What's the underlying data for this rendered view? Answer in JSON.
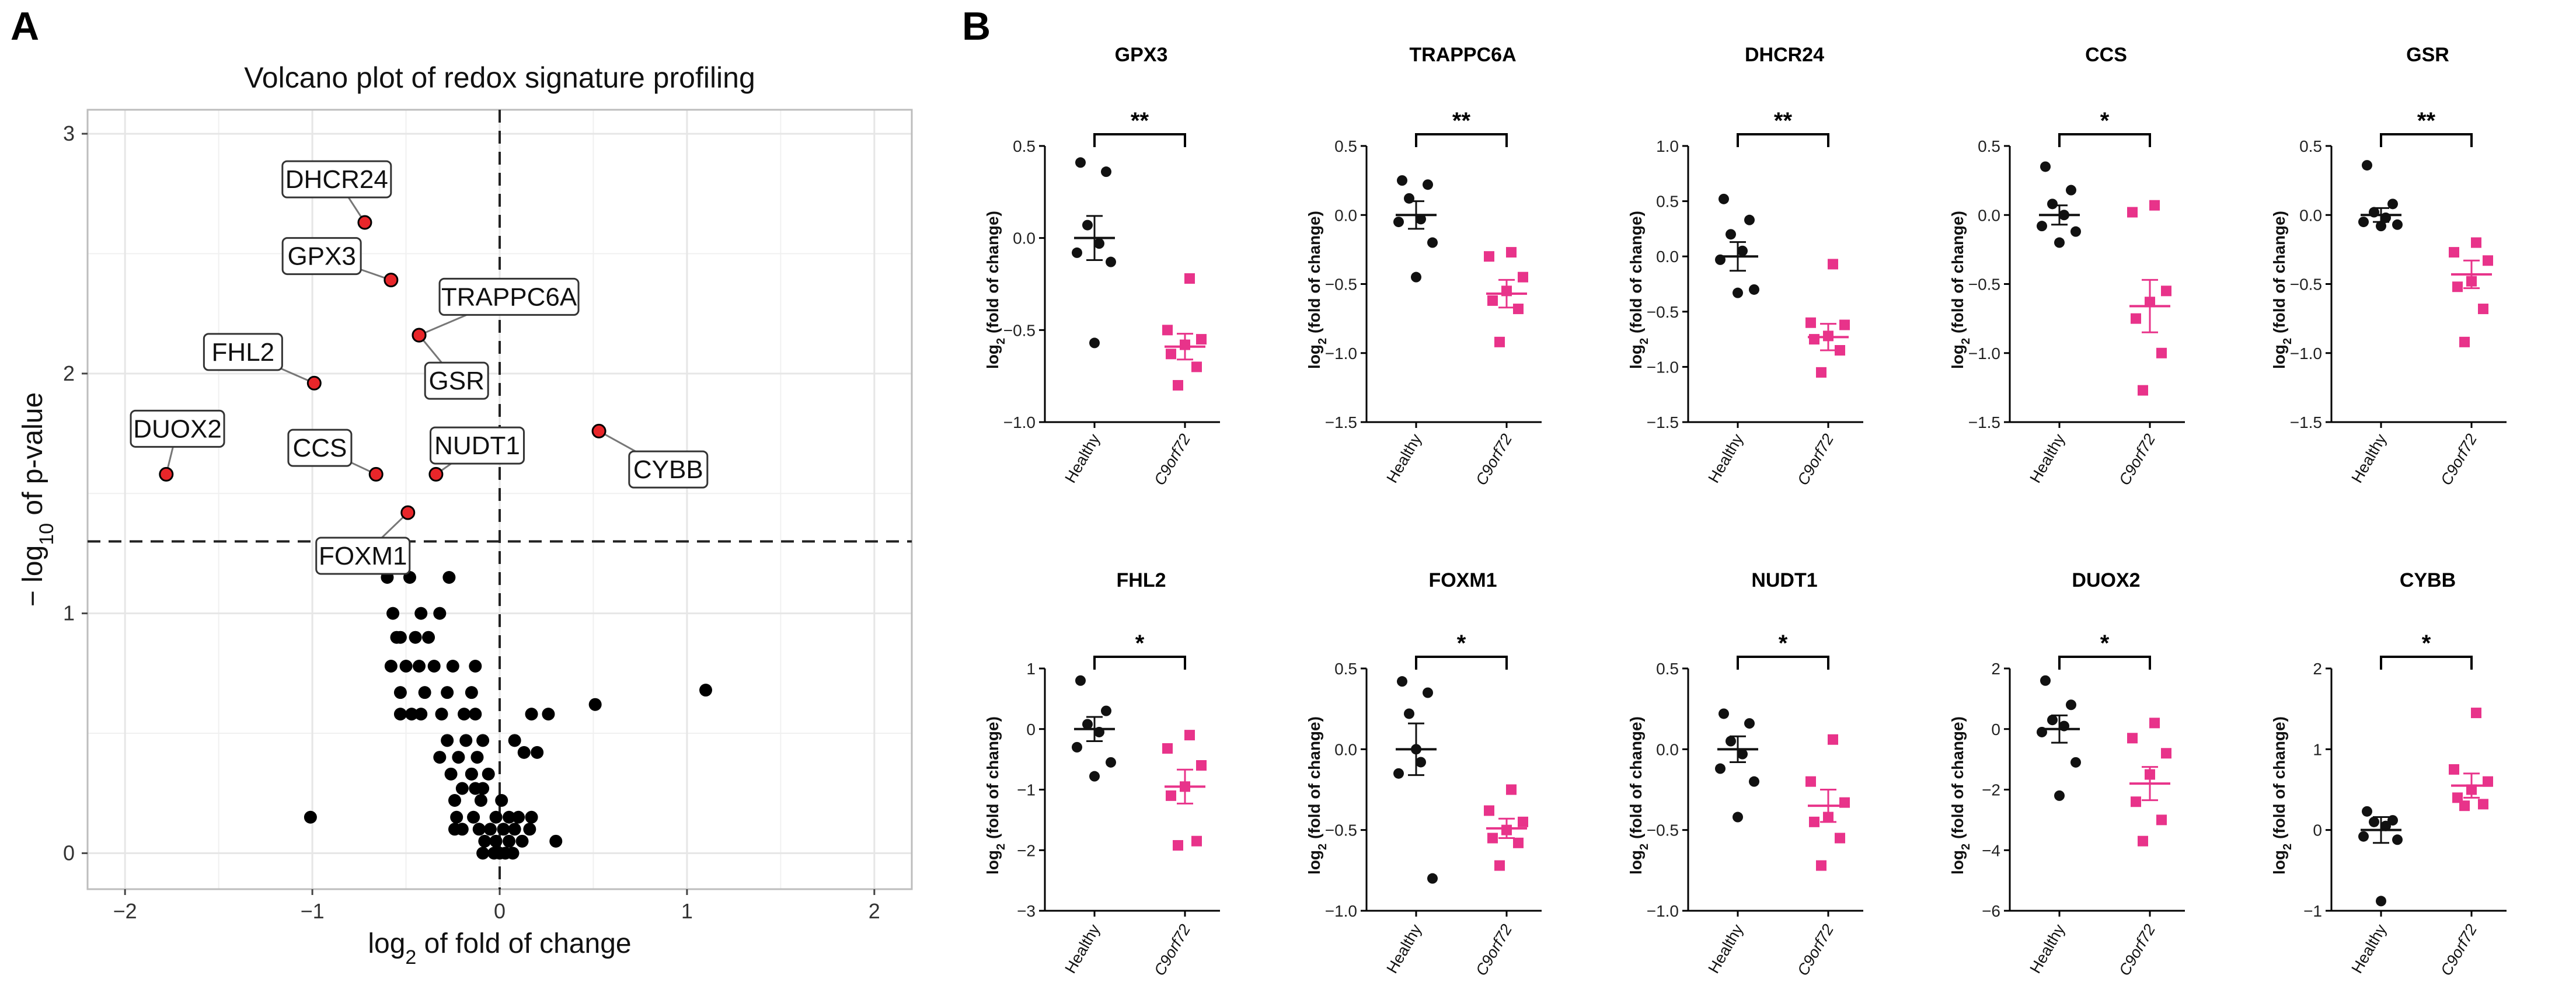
{
  "panels": {
    "a": "A",
    "b": "B"
  },
  "colors": {
    "point": "#000000",
    "highlight": "#e8262a",
    "healthy": "#111111",
    "disease": "#e8338a",
    "grid": "#e6e6e6",
    "frame": "#bdbdbd"
  },
  "chart_data": [
    {
      "type": "scatter",
      "title": "Volcano plot of redox signature profiling",
      "xlabel_base": "log",
      "xlabel_sub": "2",
      "xlabel_rest": " of fold of change",
      "ylabel_pre": "− log",
      "ylabel_sub": "10",
      "ylabel_rest": " of p-value",
      "xlim": [
        -2.2,
        2.2
      ],
      "ylim": [
        -0.15,
        3.1
      ],
      "xticks": [
        -2,
        -1,
        0,
        1,
        2
      ],
      "yticks": [
        0,
        1,
        2,
        3
      ],
      "threshold_y": 1.3,
      "threshold_x": 0,
      "highlighted": [
        {
          "label": "DHCR24",
          "x": -0.72,
          "y": 2.63
        },
        {
          "label": "GPX3",
          "x": -0.58,
          "y": 2.39
        },
        {
          "label": "TRAPPC6A",
          "x": -0.43,
          "y": 2.16
        },
        {
          "label": "GSR",
          "x": -0.43,
          "y": 2.16
        },
        {
          "label": "FHL2",
          "x": -0.99,
          "y": 1.96
        },
        {
          "label": "CYBB",
          "x": 0.53,
          "y": 1.76
        },
        {
          "label": "DUOX2",
          "x": -1.78,
          "y": 1.58
        },
        {
          "label": "CCS",
          "x": -0.66,
          "y": 1.58
        },
        {
          "label": "NUDT1",
          "x": -0.34,
          "y": 1.58
        },
        {
          "label": "FOXM1",
          "x": -0.49,
          "y": 1.42
        }
      ],
      "points": [
        [
          -0.6,
          1.15
        ],
        [
          -0.48,
          1.15
        ],
        [
          -0.27,
          1.15
        ],
        [
          -0.57,
          1.0
        ],
        [
          -0.42,
          1.0
        ],
        [
          -0.32,
          1.0
        ],
        [
          -0.53,
          0.9
        ],
        [
          -0.45,
          0.9
        ],
        [
          -0.38,
          0.9
        ],
        [
          -0.55,
          0.9
        ],
        [
          -0.58,
          0.78
        ],
        [
          -0.5,
          0.78
        ],
        [
          -0.35,
          0.78
        ],
        [
          -0.25,
          0.78
        ],
        [
          -0.13,
          0.78
        ],
        [
          -0.43,
          0.78
        ],
        [
          -0.53,
          0.67
        ],
        [
          -0.4,
          0.67
        ],
        [
          -0.28,
          0.67
        ],
        [
          -0.15,
          0.67
        ],
        [
          -0.53,
          0.58
        ],
        [
          -0.47,
          0.58
        ],
        [
          -0.42,
          0.58
        ],
        [
          -0.31,
          0.58
        ],
        [
          -0.19,
          0.58
        ],
        [
          -0.13,
          0.58
        ],
        [
          0.17,
          0.58
        ],
        [
          0.26,
          0.58
        ],
        [
          0.51,
          0.62
        ],
        [
          1.1,
          0.68
        ],
        [
          -0.28,
          0.47
        ],
        [
          -0.18,
          0.47
        ],
        [
          -0.09,
          0.47
        ],
        [
          0.08,
          0.47
        ],
        [
          -0.32,
          0.4
        ],
        [
          -0.22,
          0.4
        ],
        [
          -0.12,
          0.4
        ],
        [
          0.13,
          0.42
        ],
        [
          0.2,
          0.42
        ],
        [
          -0.26,
          0.33
        ],
        [
          -0.15,
          0.33
        ],
        [
          -0.06,
          0.33
        ],
        [
          -0.15,
          0.33
        ],
        [
          -0.2,
          0.27
        ],
        [
          -0.13,
          0.27
        ],
        [
          -0.09,
          0.27
        ],
        [
          -0.24,
          0.22
        ],
        [
          -0.1,
          0.22
        ],
        [
          0.01,
          0.22
        ],
        [
          -0.23,
          0.15
        ],
        [
          -0.14,
          0.15
        ],
        [
          -0.02,
          0.15
        ],
        [
          0.05,
          0.15
        ],
        [
          0.1,
          0.15
        ],
        [
          0.17,
          0.15
        ],
        [
          -1.01,
          0.15
        ],
        [
          -0.24,
          0.1
        ],
        [
          -0.2,
          0.1
        ],
        [
          -0.11,
          0.1
        ],
        [
          -0.05,
          0.1
        ],
        [
          0.02,
          0.1
        ],
        [
          0.08,
          0.1
        ],
        [
          0.16,
          0.1
        ],
        [
          -0.08,
          0.05
        ],
        [
          -0.02,
          0.05
        ],
        [
          0.05,
          0.05
        ],
        [
          0.12,
          0.05
        ],
        [
          0.3,
          0.05
        ],
        [
          -0.09,
          0.0
        ],
        [
          -0.03,
          0.0
        ],
        [
          0.03,
          0.0
        ],
        [
          0.07,
          0.0
        ],
        [
          0.0,
          0.0
        ]
      ]
    },
    {
      "type": "scatter",
      "subtype": "dot-plot-grid",
      "ylabel_pre": "log",
      "ylabel_sub": "2",
      "ylabel_rest": " (fold of change)",
      "categories": [
        "Healthy",
        "C9orf72"
      ],
      "panels": [
        {
          "title": "GPX3",
          "ylim": [
            -1.0,
            0.5
          ],
          "yticks": [
            -1.0,
            -0.5,
            0.0,
            0.5
          ],
          "tick_fmt": 1,
          "sig": "**",
          "healthy": [
            0.41,
            0.36,
            0.07,
            -0.03,
            -0.08,
            -0.13,
            -0.57
          ],
          "disease": [
            -0.22,
            -0.5,
            -0.55,
            -0.58,
            -0.63,
            -0.7,
            -0.8
          ],
          "healthy_mean": 0.0,
          "healthy_sem": 0.12,
          "disease_mean": -0.59,
          "disease_sem": 0.07
        },
        {
          "title": "TRAPPC6A",
          "ylim": [
            -1.5,
            0.5
          ],
          "yticks": [
            -1.5,
            -1.0,
            -0.5,
            0.0,
            0.5
          ],
          "tick_fmt": 1,
          "sig": "**",
          "healthy": [
            0.25,
            0.22,
            0.12,
            -0.03,
            -0.05,
            -0.2,
            -0.45
          ],
          "disease": [
            -0.27,
            -0.3,
            -0.45,
            -0.55,
            -0.62,
            -0.68,
            -0.92
          ],
          "healthy_mean": 0.0,
          "healthy_sem": 0.1,
          "disease_mean": -0.57,
          "disease_sem": 0.1
        },
        {
          "title": "DHCR24",
          "ylim": [
            -1.5,
            1.0
          ],
          "yticks": [
            -1.5,
            -1.0,
            -0.5,
            0.0,
            0.5,
            1.0
          ],
          "tick_fmt": 1,
          "sig": "**",
          "healthy": [
            0.52,
            0.33,
            0.2,
            0.05,
            -0.03,
            -0.3,
            -0.33
          ],
          "disease": [
            -0.07,
            -0.6,
            -0.62,
            -0.72,
            -0.75,
            -0.85,
            -1.05
          ],
          "healthy_mean": 0.0,
          "healthy_sem": 0.13,
          "disease_mean": -0.73,
          "disease_sem": 0.12
        },
        {
          "title": "CCS",
          "ylim": [
            -1.5,
            0.5
          ],
          "yticks": [
            -1.5,
            -1.0,
            -0.5,
            0.0,
            0.5
          ],
          "tick_fmt": 1,
          "sig": "*",
          "healthy": [
            0.35,
            0.18,
            0.08,
            0.0,
            -0.08,
            -0.12,
            -0.2
          ],
          "disease": [
            0.07,
            0.02,
            -0.55,
            -0.63,
            -0.75,
            -1.0,
            -1.27
          ],
          "healthy_mean": 0.0,
          "healthy_sem": 0.07,
          "disease_mean": -0.66,
          "disease_sem": 0.19
        },
        {
          "title": "GSR",
          "ylim": [
            -1.5,
            0.5
          ],
          "yticks": [
            -1.5,
            -1.0,
            -0.5,
            0.0,
            0.5
          ],
          "tick_fmt": 1,
          "sig": "**",
          "healthy": [
            0.36,
            0.08,
            0.02,
            -0.02,
            -0.05,
            -0.07,
            -0.08
          ],
          "disease": [
            -0.2,
            -0.27,
            -0.33,
            -0.48,
            -0.52,
            -0.68,
            -0.92
          ],
          "healthy_mean": 0.0,
          "healthy_sem": 0.05,
          "disease_mean": -0.43,
          "disease_sem": 0.1
        },
        {
          "title": "FHL2",
          "ylim": [
            -3,
            1
          ],
          "yticks": [
            -3,
            -2,
            -1,
            0,
            1
          ],
          "tick_fmt": 0,
          "sig": "*",
          "healthy": [
            0.8,
            0.3,
            0.08,
            -0.05,
            -0.3,
            -0.55,
            -0.78
          ],
          "disease": [
            -0.1,
            -0.32,
            -0.6,
            -0.95,
            -1.1,
            -1.85,
            -1.92
          ],
          "healthy_mean": 0.0,
          "healthy_sem": 0.2,
          "disease_mean": -0.95,
          "disease_sem": 0.28
        },
        {
          "title": "FOXM1",
          "ylim": [
            -1.0,
            0.5
          ],
          "yticks": [
            -1.0,
            -0.5,
            0.0,
            0.5
          ],
          "tick_fmt": 1,
          "sig": "*",
          "healthy": [
            0.42,
            0.35,
            0.22,
            -0.08,
            -0.15,
            -0.8,
            0.0
          ],
          "disease": [
            -0.25,
            -0.38,
            -0.45,
            -0.5,
            -0.55,
            -0.58,
            -0.72
          ],
          "healthy_mean": 0.0,
          "healthy_sem": 0.16,
          "disease_mean": -0.49,
          "disease_sem": 0.06
        },
        {
          "title": "NUDT1",
          "ylim": [
            -1.0,
            0.5
          ],
          "yticks": [
            -1.0,
            -0.5,
            0.0,
            0.5
          ],
          "tick_fmt": 1,
          "sig": "*",
          "healthy": [
            0.22,
            0.16,
            0.05,
            -0.03,
            -0.12,
            -0.2,
            -0.42
          ],
          "disease": [
            0.06,
            -0.2,
            -0.33,
            -0.42,
            -0.45,
            -0.55,
            -0.72
          ],
          "healthy_mean": 0.0,
          "healthy_sem": 0.08,
          "disease_mean": -0.35,
          "disease_sem": 0.1
        },
        {
          "title": "DUOX2",
          "ylim": [
            -6,
            2
          ],
          "yticks": [
            -6,
            -4,
            -2,
            0,
            2
          ],
          "tick_fmt": 0,
          "sig": "*",
          "healthy": [
            1.6,
            0.8,
            0.3,
            0.1,
            -0.1,
            -1.1,
            -2.2
          ],
          "disease": [
            0.2,
            -0.3,
            -0.8,
            -1.5,
            -2.4,
            -3.0,
            -3.7
          ],
          "healthy_mean": 0.0,
          "healthy_sem": 0.45,
          "disease_mean": -1.8,
          "disease_sem": 0.55
        },
        {
          "title": "CYBB",
          "ylim": [
            -1,
            2
          ],
          "yticks": [
            -1,
            0,
            1,
            2
          ],
          "tick_fmt": 0,
          "sig": "*",
          "healthy": [
            0.23,
            0.12,
            0.1,
            0.05,
            -0.08,
            -0.12,
            -0.88
          ],
          "disease": [
            1.45,
            0.75,
            0.6,
            0.5,
            0.4,
            0.32,
            0.3
          ],
          "healthy_mean": 0.0,
          "healthy_sem": 0.16,
          "disease_mean": 0.55,
          "disease_sem": 0.15
        }
      ]
    }
  ]
}
